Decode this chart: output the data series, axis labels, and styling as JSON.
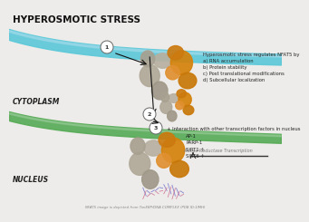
{
  "bg_color": "#eeecea",
  "title": "HYPEROSMOTIC STRESS",
  "title_color": "#111111",
  "title_fontsize": 7.5,
  "cyan_curve_color": "#5bc8d8",
  "cyan_curve_color2": "#aaddee",
  "green_curve_color": "#55aa55",
  "green_curve_color2": "#99cc99",
  "cytoplasm_label": "CYTOPLASM",
  "nucleus_label": "NUCLEUS",
  "label_color": "#222222",
  "label_fontsize": 5.5,
  "annotation_text": "Hyperosmotic stress regulates NFAT5 by\na) RNA accumulation\nb) Protein stability\nc) Post translational modifications\nd) Subcellular localization",
  "annotation_fontsize": 3.8,
  "interaction_header": "+ Interaction with other transcription factors in nucleus",
  "interaction_list": "AP-1\nPARP-1\nSIRT1 ↑\nSIRT6 ↑",
  "interaction_fontsize": 3.8,
  "ar_transcription_label": "Aldose Reductase Transcription",
  "ar_fontsize": 3.5,
  "footer_text": "NFAT5 image is depicted from TonEBP/DNA COMPLEX (PDB ID:1IMH)",
  "footer_fontsize": 2.8,
  "arrow_color": "#111111"
}
